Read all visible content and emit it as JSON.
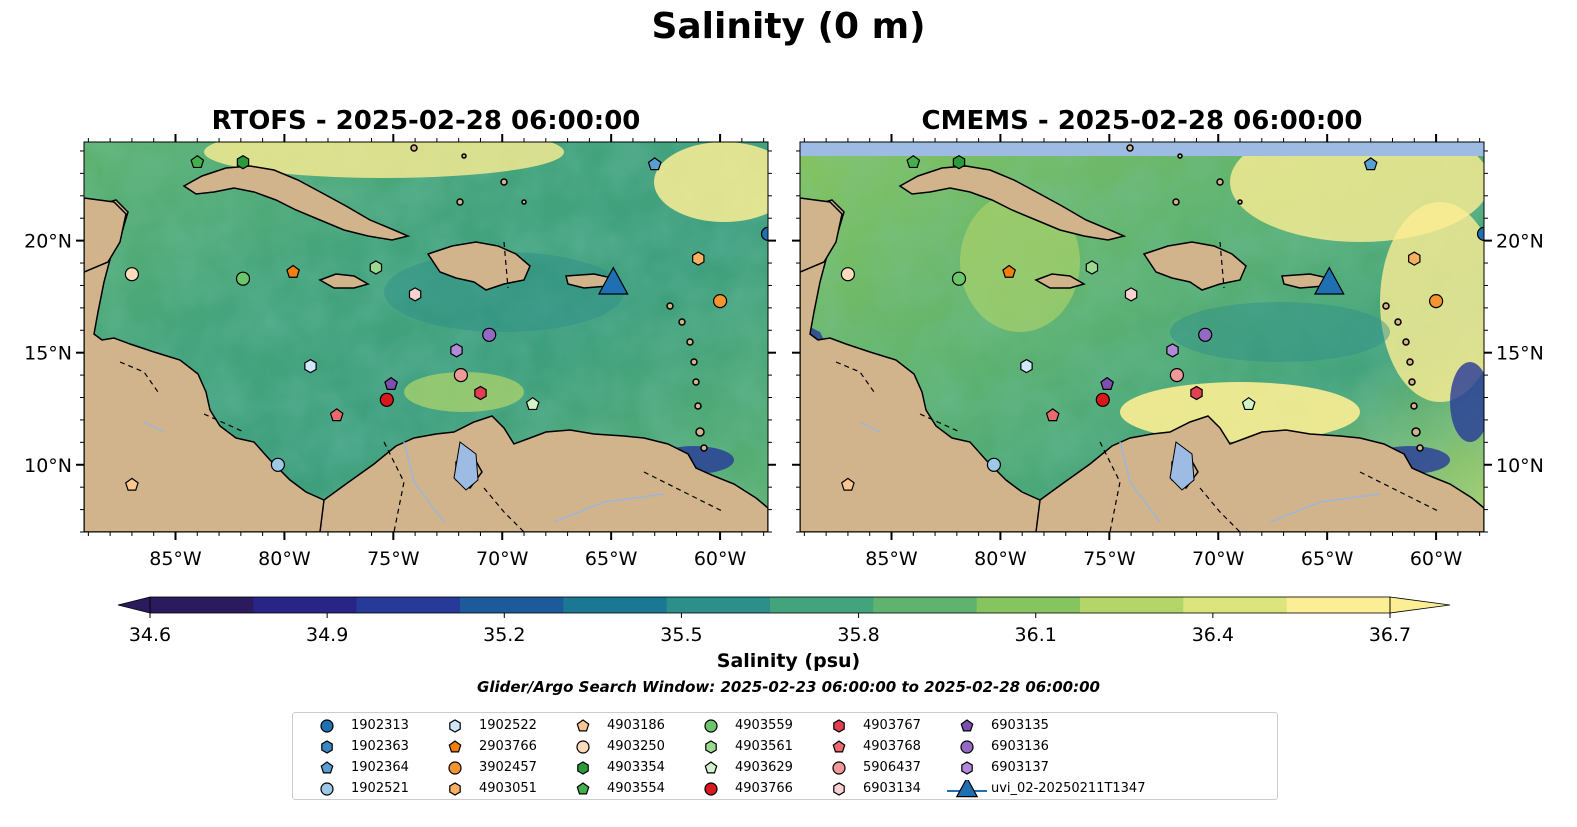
{
  "title": "Salinity (0 m)",
  "panels": [
    {
      "id": "rtofs",
      "title": "RTOFS - 2025-02-28 06:00:00"
    },
    {
      "id": "cmems",
      "title": "CMEMS - 2025-02-28 06:00:00"
    }
  ],
  "axes": {
    "lon_range": [
      -89.2,
      -57.8
    ],
    "lat_range": [
      7.0,
      24.4
    ],
    "lon_ticks": [
      "85°W",
      "80°W",
      "75°W",
      "70°W",
      "65°W",
      "60°W"
    ],
    "lon_tick_values": [
      -85,
      -80,
      -75,
      -70,
      -65,
      -60
    ],
    "lat_ticks": [
      "10°N",
      "15°N",
      "20°N"
    ],
    "lat_tick_values": [
      10,
      15,
      20
    ]
  },
  "colorbar": {
    "label": "Salinity (psu)",
    "min": 34.6,
    "max": 36.7,
    "ticks": [
      "34.6",
      "34.9",
      "35.2",
      "35.5",
      "35.8",
      "36.1",
      "36.4",
      "36.7"
    ],
    "colormap": [
      "#2b1a5e",
      "#282586",
      "#273a99",
      "#1c5a9b",
      "#1b7894",
      "#2d8f8a",
      "#43a37c",
      "#5fb36f",
      "#86c45f",
      "#b4d669",
      "#dbe57c",
      "#fcee94"
    ]
  },
  "search_window": "Glider/Argo Search Window: 2025-02-23 06:00:00 to 2025-02-28 06:00:00",
  "land_color": "#d2b48c",
  "markers": [
    {
      "id": "1902313",
      "shape": "circle",
      "color": "#1f6fb3",
      "lon": -57.8,
      "lat": 20.3
    },
    {
      "id": "1902363",
      "shape": "hexagon",
      "color": "#3c86c2",
      "lon": null,
      "lat": null
    },
    {
      "id": "1902364",
      "shape": "pentagon",
      "color": "#5a9fd3",
      "lon": -63.0,
      "lat": 23.4
    },
    {
      "id": "1902521",
      "shape": "circle",
      "color": "#9ec8e8",
      "lon": -80.3,
      "lat": 10.0
    },
    {
      "id": "1902522",
      "shape": "hexagon",
      "color": "#cfe7f8",
      "lon": -78.8,
      "lat": 14.4
    },
    {
      "id": "2903766",
      "shape": "pentagon",
      "color": "#f07f10",
      "lon": -79.6,
      "lat": 18.6
    },
    {
      "id": "3902457",
      "shape": "circle",
      "color": "#f59330",
      "lon": -60.0,
      "lat": 17.3
    },
    {
      "id": "4903051",
      "shape": "hexagon",
      "color": "#f9b060",
      "lon": -61.0,
      "lat": 19.2
    },
    {
      "id": "4903186",
      "shape": "pentagon",
      "color": "#fbc68f",
      "lon": -87.0,
      "lat": 9.1
    },
    {
      "id": "4903250",
      "shape": "circle",
      "color": "#fddcbc",
      "lon": -87.0,
      "lat": 18.5
    },
    {
      "id": "4903354",
      "shape": "hexagon",
      "color": "#2a9a3b",
      "lon": -81.9,
      "lat": 23.5
    },
    {
      "id": "4903554",
      "shape": "pentagon",
      "color": "#45ae4d",
      "lon": -84.0,
      "lat": 23.5
    },
    {
      "id": "4903559",
      "shape": "circle",
      "color": "#6cc56a",
      "lon": -81.9,
      "lat": 18.3
    },
    {
      "id": "4903561",
      "shape": "hexagon",
      "color": "#9ad98f",
      "lon": -75.8,
      "lat": 18.8
    },
    {
      "id": "4903629",
      "shape": "pentagon",
      "color": "#d2f2c8",
      "lon": -68.6,
      "lat": 12.7
    },
    {
      "id": "4903766",
      "shape": "circle",
      "color": "#d7191c",
      "lon": -75.3,
      "lat": 12.9
    },
    {
      "id": "4903767",
      "shape": "hexagon",
      "color": "#e04050",
      "lon": -71.0,
      "lat": 13.2
    },
    {
      "id": "4903768",
      "shape": "pentagon",
      "color": "#ec6a6e",
      "lon": -77.6,
      "lat": 12.2
    },
    {
      "id": "5906437",
      "shape": "circle",
      "color": "#f19898",
      "lon": -71.9,
      "lat": 14.0
    },
    {
      "id": "6903134",
      "shape": "hexagon",
      "color": "#fbd0d0",
      "lon": -74.0,
      "lat": 17.6
    },
    {
      "id": "6903135",
      "shape": "pentagon",
      "color": "#7c4fb0",
      "lon": -75.1,
      "lat": 13.6
    },
    {
      "id": "6903136",
      "shape": "circle",
      "color": "#9469c4",
      "lon": -70.6,
      "lat": 15.8
    },
    {
      "id": "6903137",
      "shape": "hexagon",
      "color": "#b08ad6",
      "lon": -72.1,
      "lat": 15.1
    },
    {
      "id": "uvi_02-20250211T1347",
      "shape": "triangle",
      "color": "#1f6fb3",
      "lon": -64.9,
      "lat": 18.1
    }
  ]
}
